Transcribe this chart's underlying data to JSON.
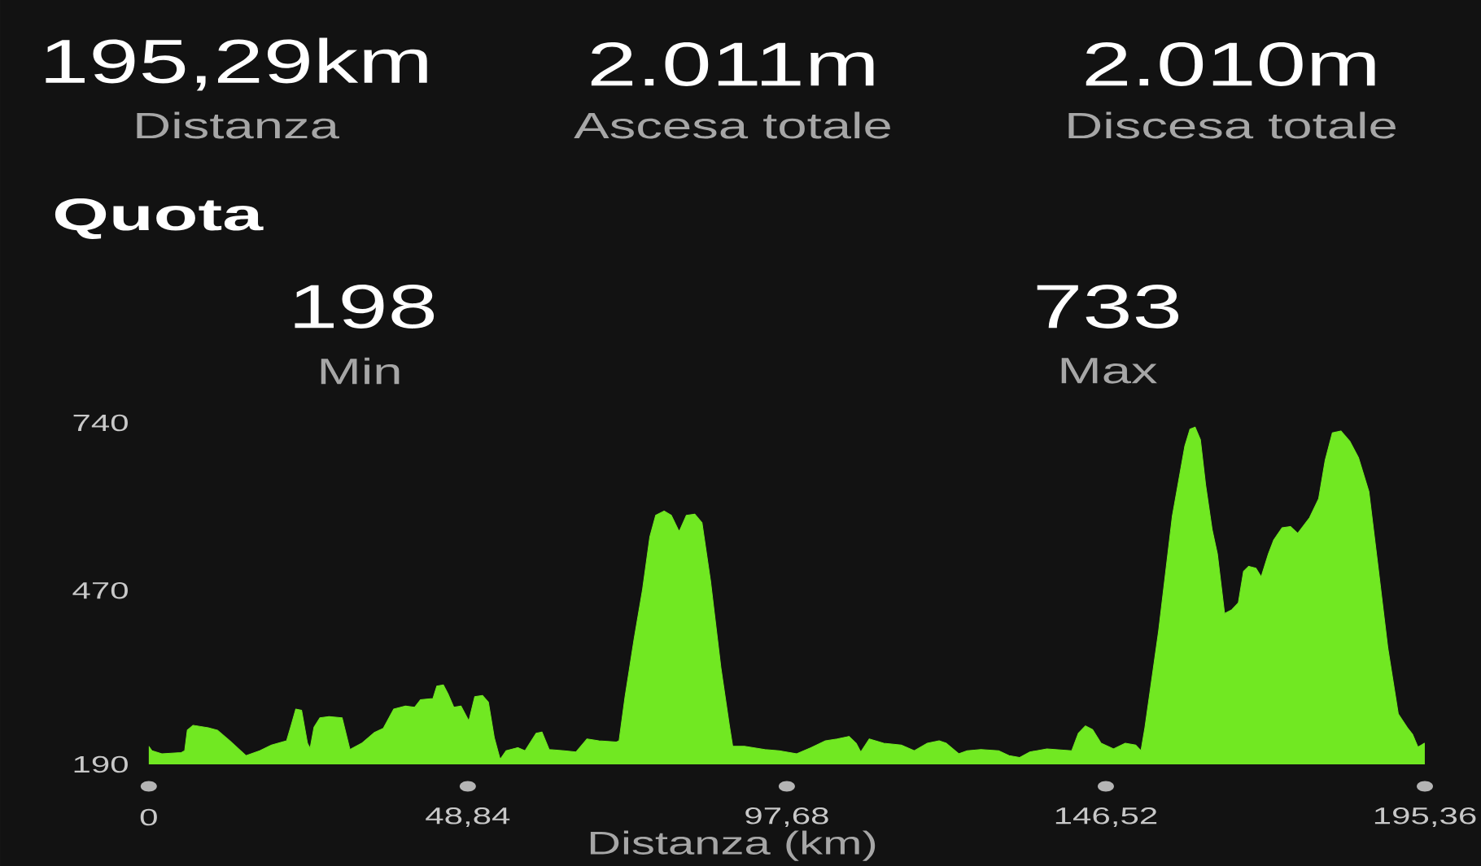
{
  "chart_data": {
    "type": "area",
    "title": "Quota",
    "xlabel": "Distanza (km)",
    "annotations": [
      "195,29km",
      "Distanza",
      "2.011m",
      "Ascesa totale",
      "2.010m",
      "Discesa totale",
      "198",
      "Min",
      "733",
      "Max"
    ],
    "x": [
      0,
      0.5,
      2.0,
      5.0,
      5.5,
      5.9,
      6.8,
      9.1,
      10.5,
      12.4,
      14.9,
      17.0,
      18.8,
      21.1,
      21.8,
      22.5,
      23.4,
      24.3,
      24.7,
      25.3,
      26.2,
      27.6,
      29.6,
      30.8,
      32.6,
      34.5,
      35.9,
      37.5,
      39.3,
      40.7,
      41.6,
      43.5,
      44.1,
      45.1,
      45.8,
      46.7,
      47.8,
      49.0,
      49.9,
      51.1,
      52.0,
      52.9,
      53.8,
      54.7,
      56.5,
      57.6,
      59.3,
      60.2,
      61.3,
      63.6,
      65.4,
      67.1,
      68.9,
      71.6,
      72.0,
      72.9,
      74.3,
      75.6,
      76.7,
      77.6,
      78.9,
      80.0,
      81.2,
      82.3,
      83.6,
      84.7,
      86.0,
      87.6,
      88.9,
      89.4,
      91.2,
      94.3,
      96.5,
      99.2,
      101.4,
      103.6,
      105.4,
      107.2,
      108.3,
      109.0,
      110.3,
      112.5,
      115.2,
      117.2,
      119.2,
      121.0,
      122.1,
      124.0,
      125.3,
      127.4,
      130.1,
      131.7,
      133.3,
      134.9,
      137.5,
      141.3,
      142.3,
      143.4,
      144.5,
      145.8,
      147.7,
      149.5,
      151.1,
      151.9,
      152.5,
      154.6,
      156.7,
      158.6,
      159.4,
      160.2,
      161.0,
      161.8,
      162.8,
      163.6,
      164.7,
      165.8,
      166.8,
      167.6,
      168.4,
      169.5,
      170.3,
      171.4,
      172.2,
      173.5,
      174.8,
      175.9,
      177.7,
      179.1,
      180.1,
      181.2,
      182.5,
      183.9,
      185.2,
      186.8,
      188.1,
      189.7,
      191.3,
      192.7,
      193.5,
      194.3,
      194.8,
      195.29
    ],
    "series": [
      {
        "color": "#71e822",
        "values": [
          219,
          212,
          207,
          209,
          212,
          245,
          253,
          249,
          245,
          228,
          204,
          212,
          221,
          228,
          253,
          279,
          277,
          224,
          216,
          250,
          265,
          267,
          265,
          214,
          224,
          241,
          248,
          279,
          284,
          282,
          294,
          296,
          316,
          318,
          304,
          282,
          284,
          260,
          299,
          301,
          290,
          233,
          198,
          212,
          217,
          212,
          240,
          242,
          214,
          212,
          210,
          231,
          228,
          226,
          228,
          298,
          392,
          472,
          556,
          591,
          598,
          591,
          565,
          591,
          593,
          579,
          486,
          345,
          252,
          219,
          219,
          214,
          212,
          207,
          217,
          228,
          231,
          235,
          224,
          210,
          231,
          224,
          221,
          212,
          224,
          228,
          224,
          207,
          212,
          214,
          212,
          204,
          201,
          210,
          215,
          212,
          240,
          252,
          246,
          224,
          215,
          224,
          221,
          212,
          249,
          405,
          590,
          702,
          730,
          733,
          713,
          640,
          568,
          529,
          433,
          439,
          450,
          501,
          509,
          506,
          492,
          529,
          551,
          571,
          573,
          562,
          587,
          618,
          680,
          724,
          727,
          710,
          684,
          629,
          517,
          377,
          271,
          249,
          238,
          218,
          221,
          224
        ]
      }
    ],
    "xlim": [
      0,
      195.36
    ],
    "ylim": [
      190,
      740
    ],
    "xticks": [
      0,
      {
        "value": 48.84,
        "label": "48,84"
      },
      {
        "value": 97.68,
        "label": "97,68"
      },
      {
        "value": 146.52,
        "label": "146,52"
      },
      {
        "value": 195.36,
        "label": "195,36"
      }
    ],
    "yticks": [
      190,
      470,
      740
    ]
  }
}
